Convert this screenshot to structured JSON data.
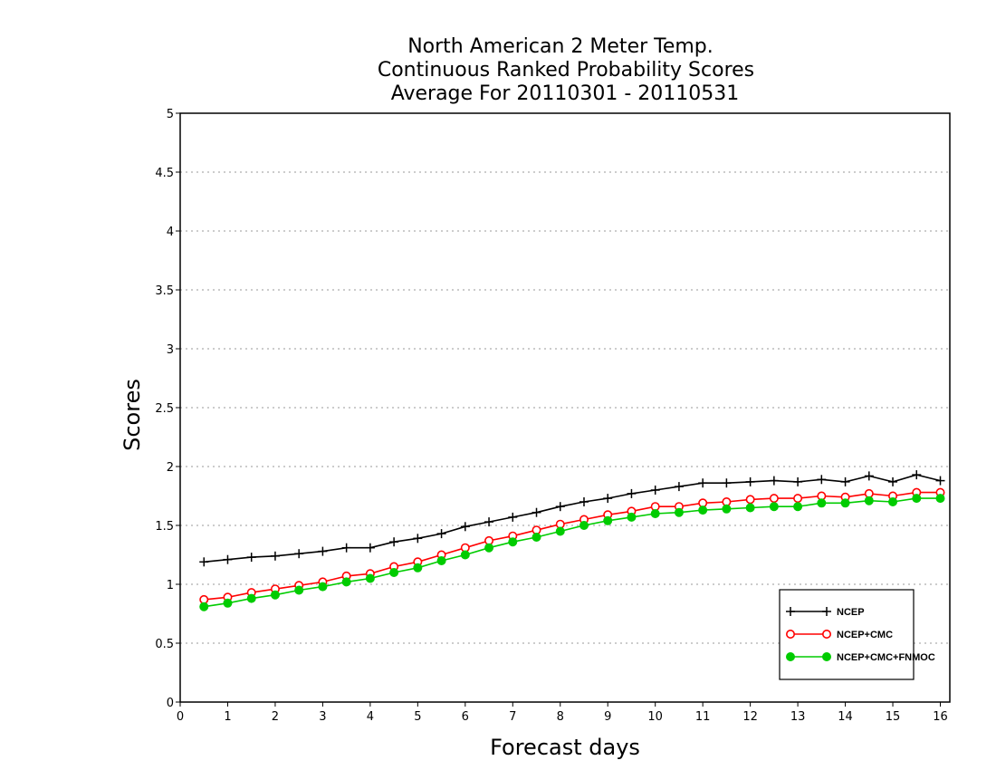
{
  "chart_data": {
    "type": "line",
    "title_lines": [
      "North American 2 Meter Temp.",
      "Continuous Ranked Probability Scores",
      "Average For 20110301 - 20110531"
    ],
    "xlabel": "Forecast days",
    "ylabel": "Scores",
    "xlim": [
      0,
      16.2
    ],
    "ylim": [
      0,
      5
    ],
    "xticks": [
      "0",
      "1",
      "2",
      "3",
      "4",
      "5",
      "6",
      "7",
      "8",
      "9",
      "10",
      "11",
      "12",
      "13",
      "14",
      "15",
      "16"
    ],
    "yticks": [
      "0",
      "0.5",
      "1",
      "1.5",
      "2",
      "2.5",
      "3",
      "3.5",
      "4",
      "4.5",
      "5"
    ],
    "grid": "horizontal dotted",
    "legend_position": "bottom-right",
    "x": [
      0.5,
      1,
      1.5,
      2,
      2.5,
      3,
      3.5,
      4,
      4.5,
      5,
      5.5,
      6,
      6.5,
      7,
      7.5,
      8,
      8.5,
      9,
      9.5,
      10,
      10.5,
      11,
      11.5,
      12,
      12.5,
      13,
      13.5,
      14,
      14.5,
      15,
      15.5,
      16
    ],
    "series": [
      {
        "name": "NCEP",
        "color": "#000000",
        "marker": "plus",
        "values": [
          1.19,
          1.21,
          1.23,
          1.24,
          1.26,
          1.28,
          1.31,
          1.31,
          1.36,
          1.39,
          1.43,
          1.49,
          1.53,
          1.57,
          1.61,
          1.66,
          1.7,
          1.73,
          1.77,
          1.8,
          1.83,
          1.86,
          1.86,
          1.87,
          1.88,
          1.87,
          1.89,
          1.87,
          1.92,
          1.87,
          1.93,
          1.88
        ]
      },
      {
        "name": "NCEP+CMC",
        "color": "#ff0000",
        "marker": "open-circle",
        "values": [
          0.87,
          0.89,
          0.93,
          0.96,
          0.99,
          1.02,
          1.07,
          1.09,
          1.15,
          1.19,
          1.25,
          1.31,
          1.37,
          1.41,
          1.46,
          1.51,
          1.55,
          1.59,
          1.62,
          1.66,
          1.66,
          1.69,
          1.7,
          1.72,
          1.73,
          1.73,
          1.75,
          1.74,
          1.77,
          1.75,
          1.78,
          1.78
        ]
      },
      {
        "name": "NCEP+CMC+FNMOC",
        "color": "#00cc00",
        "marker": "filled-circle",
        "values": [
          0.81,
          0.84,
          0.88,
          0.91,
          0.95,
          0.98,
          1.02,
          1.05,
          1.1,
          1.14,
          1.2,
          1.25,
          1.31,
          1.36,
          1.4,
          1.45,
          1.5,
          1.54,
          1.57,
          1.6,
          1.61,
          1.63,
          1.64,
          1.65,
          1.66,
          1.66,
          1.69,
          1.69,
          1.71,
          1.7,
          1.73,
          1.73
        ]
      }
    ]
  }
}
